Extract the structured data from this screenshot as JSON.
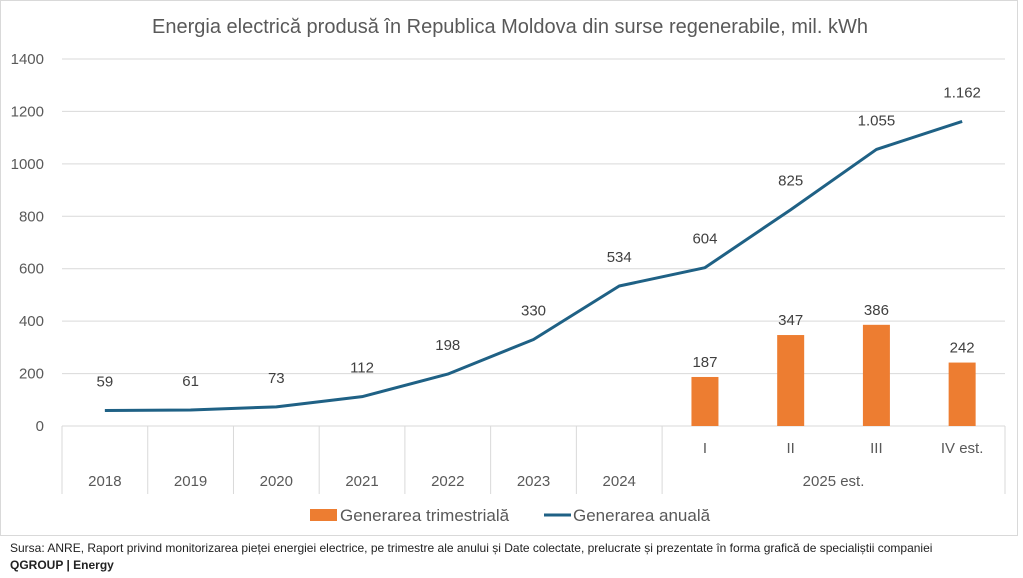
{
  "chart_data": {
    "type": "bar+line",
    "title": "Energia electrică produsă în Republica Moldova din surse regenerabile, mil. kWh",
    "xlabel": "",
    "ylabel": "",
    "ylim": [
      0,
      1400
    ],
    "yticks": [
      0,
      200,
      400,
      600,
      800,
      1000,
      1200,
      1400
    ],
    "grid": true,
    "legend_position": "bottom",
    "categories": [
      "2018",
      "2019",
      "2020",
      "2021",
      "2022",
      "2023",
      "2024",
      "I",
      "II",
      "III",
      "IV est."
    ],
    "category_groups": [
      {
        "label": "2018",
        "span": 1
      },
      {
        "label": "2019",
        "span": 1
      },
      {
        "label": "2020",
        "span": 1
      },
      {
        "label": "2021",
        "span": 1
      },
      {
        "label": "2022",
        "span": 1
      },
      {
        "label": "2023",
        "span": 1
      },
      {
        "label": "2024",
        "span": 1
      },
      {
        "label": "2025 est.",
        "span": 4
      }
    ],
    "series": [
      {
        "name": "Generarea trimestrială",
        "type": "bar",
        "color": "#ED7D31",
        "values": [
          null,
          null,
          null,
          null,
          null,
          null,
          null,
          187,
          347,
          386,
          242
        ],
        "labels": [
          null,
          null,
          null,
          null,
          null,
          null,
          null,
          "187",
          "347",
          "386",
          "242"
        ]
      },
      {
        "name": "Generarea anuală",
        "type": "line",
        "color": "#1F6185",
        "values": [
          59,
          61,
          73,
          112,
          198,
          330,
          534,
          604,
          825,
          1055,
          1162
        ],
        "labels": [
          "59",
          "61",
          "73",
          "112",
          "198",
          "330",
          "534",
          "604",
          "825",
          "1.055",
          "1.162"
        ]
      }
    ]
  },
  "footer": {
    "source": "Sursa: ANRE, Raport privind monitorizarea pieței energiei electrice, pe trimestre ale anului și Date colectate, prelucrate și prezentate în forma grafică de specialiștii companiei",
    "brand": "QGROUP | Energy"
  }
}
